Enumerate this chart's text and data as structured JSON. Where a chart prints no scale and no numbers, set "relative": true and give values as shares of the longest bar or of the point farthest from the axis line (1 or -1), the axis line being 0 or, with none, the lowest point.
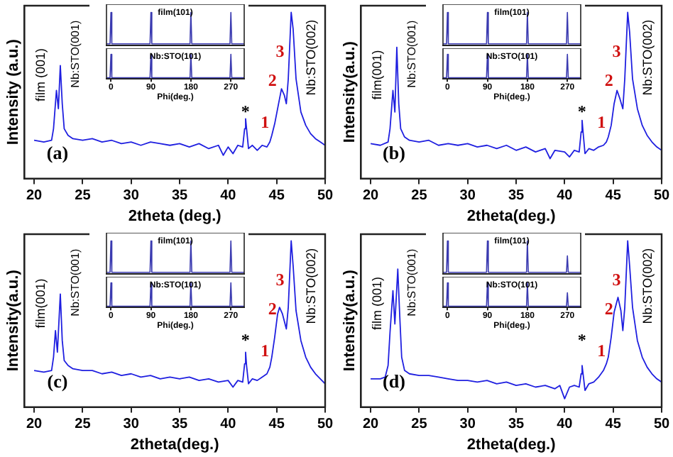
{
  "chart_data": [
    {
      "type": "line",
      "relative": true,
      "tick_labels": "x",
      "xlabel": "2theta (deg.)",
      "ylabel": "Intensity (a.u.)",
      "xlim": [
        19,
        50
      ],
      "xticks": [
        20,
        25,
        30,
        35,
        40,
        45,
        50
      ],
      "color": "#1f1fe0",
      "x": [
        20,
        21,
        21.8,
        22.0,
        22.3,
        22.5,
        22.7,
        22.9,
        23.1,
        23.5,
        24,
        25,
        26,
        27,
        28,
        29,
        30,
        31,
        32,
        33,
        34,
        35,
        36,
        37,
        38,
        39,
        39.5,
        40,
        40.5,
        41,
        41.5,
        41.7,
        41.8,
        41.9,
        42.1,
        42.5,
        43,
        43.5,
        44,
        44.3,
        44.5,
        44.8,
        45.2,
        45.5,
        45.8,
        46.0,
        46.2,
        46.5,
        46.7,
        47,
        47.5,
        48,
        48.5,
        49,
        49.5,
        50
      ],
      "values": [
        0.23,
        0.22,
        0.23,
        0.3,
        0.53,
        0.42,
        0.68,
        0.45,
        0.3,
        0.26,
        0.24,
        0.23,
        0.24,
        0.22,
        0.23,
        0.21,
        0.22,
        0.2,
        0.22,
        0.21,
        0.2,
        0.21,
        0.19,
        0.21,
        0.18,
        0.2,
        0.14,
        0.19,
        0.15,
        0.2,
        0.19,
        0.3,
        0.36,
        0.3,
        0.18,
        0.2,
        0.17,
        0.2,
        0.19,
        0.22,
        0.26,
        0.33,
        0.45,
        0.54,
        0.5,
        0.45,
        0.6,
        1,
        0.9,
        0.6,
        0.4,
        0.32,
        0.27,
        0.24,
        0.22,
        0.2
      ],
      "annotations": [
        "(a)",
        "film (001)",
        "Nb:STO(002)",
        "Nb:STO(001)",
        "*",
        "1",
        "2",
        "3"
      ]
    },
    {
      "type": "line",
      "relative": true,
      "tick_labels": false,
      "title": "film(101)",
      "xlim": [
        -10,
        300
      ],
      "xticks": [
        0,
        90,
        180,
        270
      ],
      "color": "#3a3ab0",
      "x": [
        -10,
        -2,
        0,
        2,
        88,
        90,
        92,
        178,
        180,
        182,
        268,
        270,
        272,
        300
      ],
      "values": [
        0.05,
        0.05,
        1,
        0.05,
        0.05,
        1,
        0.05,
        0.05,
        1,
        0.05,
        0.05,
        1,
        0.05,
        0.05
      ]
    },
    {
      "type": "line",
      "relative": true,
      "tick_labels": "x",
      "title": "Nb:STO(101)",
      "xlabel": "Phi(deg.)",
      "xlim": [
        -10,
        300
      ],
      "xticks": [
        0,
        90,
        180,
        270
      ],
      "color": "#3a3ab0",
      "x": [
        -10,
        -2,
        0,
        2,
        88,
        90,
        92,
        178,
        180,
        182,
        268,
        270,
        272,
        300
      ],
      "values": [
        0.05,
        0.05,
        1,
        0.05,
        0.05,
        1,
        0.05,
        0.05,
        1,
        0.05,
        0.05,
        1,
        0.05,
        0.05
      ]
    },
    {
      "type": "line",
      "relative": true,
      "tick_labels": "x",
      "xlabel": "2theta(deg.)",
      "ylabel": "Intensity(a.u.)",
      "xlim": [
        19,
        50
      ],
      "xticks": [
        20,
        25,
        30,
        35,
        40,
        45,
        50
      ],
      "color": "#1f1fe0",
      "x": [
        20,
        21,
        21.8,
        22.0,
        22.3,
        22.5,
        22.7,
        22.9,
        23.1,
        23.5,
        24,
        25,
        26,
        27,
        28,
        29,
        30,
        31,
        32,
        33,
        34,
        35,
        36,
        37,
        38,
        38.5,
        39,
        40,
        40.5,
        41,
        41.5,
        41.7,
        41.8,
        41.9,
        42.1,
        42.5,
        43,
        43.5,
        44,
        44.3,
        44.5,
        44.8,
        45.1,
        45.4,
        45.7,
        46.0,
        46.2,
        46.5,
        46.7,
        47,
        47.5,
        48,
        48.5,
        49,
        49.5,
        50
      ],
      "values": [
        0.21,
        0.2,
        0.22,
        0.3,
        0.53,
        0.4,
        0.79,
        0.45,
        0.3,
        0.25,
        0.23,
        0.22,
        0.23,
        0.2,
        0.21,
        0.2,
        0.21,
        0.19,
        0.2,
        0.18,
        0.2,
        0.17,
        0.19,
        0.16,
        0.18,
        0.12,
        0.17,
        0.16,
        0.13,
        0.17,
        0.16,
        0.28,
        0.35,
        0.28,
        0.15,
        0.18,
        0.17,
        0.19,
        0.2,
        0.22,
        0.25,
        0.32,
        0.45,
        0.53,
        0.48,
        0.42,
        0.6,
        1,
        0.88,
        0.6,
        0.42,
        0.32,
        0.26,
        0.22,
        0.19,
        0.17
      ],
      "annotations": [
        "(b)",
        "film(001)",
        "Nb:STO(002)",
        "Nb:STO(001)",
        "*",
        "1",
        "2",
        "3"
      ]
    },
    {
      "type": "line",
      "relative": true,
      "tick_labels": false,
      "title": "film(101)",
      "xlim": [
        -10,
        300
      ],
      "xticks": [
        0,
        90,
        180,
        270
      ],
      "color": "#3a3ab0",
      "x": [
        -10,
        -2,
        0,
        2,
        88,
        90,
        92,
        178,
        180,
        182,
        268,
        270,
        272,
        300
      ],
      "values": [
        0.05,
        0.05,
        1,
        0.05,
        0.05,
        1,
        0.05,
        0.05,
        1,
        0.05,
        0.05,
        1,
        0.05,
        0.05
      ]
    },
    {
      "type": "line",
      "relative": true,
      "tick_labels": "x",
      "title": "Nb:STO(101)",
      "xlabel": "Phi(deg.)",
      "xlim": [
        -10,
        300
      ],
      "xticks": [
        0,
        90,
        180,
        270
      ],
      "color": "#3a3ab0",
      "x": [
        -10,
        -2,
        0,
        2,
        88,
        90,
        92,
        178,
        180,
        182,
        268,
        270,
        272,
        300
      ],
      "values": [
        0.05,
        0.05,
        1,
        0.05,
        0.05,
        1,
        0.05,
        0.05,
        1,
        0.05,
        0.05,
        1,
        0.05,
        0.05
      ]
    },
    {
      "type": "line",
      "relative": true,
      "tick_labels": "x",
      "xlabel": "2theta(deg.)",
      "ylabel": "Intensity(a.u.)",
      "xlim": [
        19,
        50
      ],
      "xticks": [
        20,
        25,
        30,
        35,
        40,
        45,
        50
      ],
      "color": "#1f1fe0",
      "x": [
        20,
        21,
        21.8,
        22.0,
        22.2,
        22.4,
        22.7,
        22.9,
        23.1,
        23.5,
        24,
        25,
        26,
        27,
        28,
        29,
        30,
        31,
        32,
        33,
        34,
        35,
        36,
        37,
        38,
        39,
        40,
        40.5,
        41,
        41.5,
        41.7,
        41.8,
        41.9,
        42.1,
        42.5,
        43,
        43.5,
        44,
        44.3,
        44.5,
        44.8,
        45.1,
        45.3,
        45.6,
        46.0,
        46.2,
        46.5,
        46.7,
        47,
        47.5,
        48,
        48.5,
        49,
        49.5,
        50
      ],
      "values": [
        0.22,
        0.21,
        0.22,
        0.3,
        0.46,
        0.33,
        0.68,
        0.4,
        0.28,
        0.25,
        0.23,
        0.22,
        0.22,
        0.2,
        0.21,
        0.19,
        0.2,
        0.18,
        0.19,
        0.17,
        0.18,
        0.17,
        0.18,
        0.16,
        0.17,
        0.15,
        0.16,
        0.12,
        0.16,
        0.15,
        0.26,
        0.33,
        0.25,
        0.14,
        0.17,
        0.16,
        0.18,
        0.2,
        0.24,
        0.3,
        0.42,
        0.56,
        0.6,
        0.56,
        0.47,
        0.6,
        1,
        0.85,
        0.58,
        0.4,
        0.3,
        0.24,
        0.2,
        0.17,
        0.14
      ],
      "annotations": [
        "(c)",
        "film(001)",
        "Nb:STO(002)",
        "Nb:STO(001)",
        "*",
        "1",
        "2",
        "3"
      ]
    },
    {
      "type": "line",
      "relative": true,
      "tick_labels": false,
      "title": "film(101)",
      "xlim": [
        -10,
        300
      ],
      "xticks": [
        0,
        90,
        180,
        270
      ],
      "color": "#3a3ab0",
      "x": [
        -10,
        -2,
        0,
        2,
        88,
        90,
        92,
        178,
        180,
        182,
        268,
        270,
        272,
        300
      ],
      "values": [
        0.05,
        0.05,
        1,
        0.05,
        0.05,
        1,
        0.05,
        0.05,
        1,
        0.05,
        0.05,
        1,
        0.05,
        0.05
      ]
    },
    {
      "type": "line",
      "relative": true,
      "tick_labels": "x",
      "title": "Nb:STO(101)",
      "xlabel": "Phi(deg.)",
      "xlim": [
        -10,
        300
      ],
      "xticks": [
        0,
        90,
        180,
        270
      ],
      "color": "#3a3ab0",
      "x": [
        -10,
        -2,
        0,
        2,
        88,
        90,
        92,
        178,
        180,
        182,
        268,
        270,
        272,
        300
      ],
      "values": [
        0.05,
        0.05,
        1,
        0.05,
        0.05,
        1,
        0.05,
        0.05,
        1,
        0.05,
        0.05,
        1,
        0.05,
        0.05
      ]
    },
    {
      "type": "line",
      "relative": true,
      "tick_labels": "x",
      "xlabel": "2theta(deg.)",
      "ylabel": "Intensity(a.u.)",
      "xlim": [
        19,
        50
      ],
      "xticks": [
        20,
        25,
        30,
        35,
        40,
        45,
        50
      ],
      "color": "#1f1fe0",
      "x": [
        20,
        21,
        21.5,
        21.8,
        22.0,
        22.3,
        22.5,
        22.8,
        23.0,
        23.2,
        23.5,
        24,
        25,
        26,
        27,
        28,
        29,
        30,
        31,
        32,
        33,
        34,
        35,
        36,
        37,
        38,
        39,
        39.5,
        40,
        40.5,
        41,
        41.5,
        41.7,
        41.8,
        41.9,
        42.1,
        42.5,
        43,
        43.5,
        44,
        44.3,
        44.5,
        44.8,
        45.1,
        45.5,
        45.8,
        46.0,
        46.2,
        46.5,
        46.7,
        47,
        47.5,
        48,
        48.5,
        49,
        49.5,
        50
      ],
      "values": [
        0.17,
        0.17,
        0.18,
        0.25,
        0.45,
        0.7,
        0.5,
        0.83,
        0.55,
        0.3,
        0.22,
        0.2,
        0.19,
        0.19,
        0.18,
        0.17,
        0.16,
        0.16,
        0.15,
        0.16,
        0.14,
        0.15,
        0.13,
        0.14,
        0.12,
        0.13,
        0.11,
        0.13,
        0.05,
        0.12,
        0.13,
        0.12,
        0.2,
        0.25,
        0.2,
        0.1,
        0.14,
        0.15,
        0.18,
        0.22,
        0.26,
        0.3,
        0.42,
        0.57,
        0.66,
        0.58,
        0.46,
        0.6,
        1,
        0.85,
        0.6,
        0.4,
        0.3,
        0.24,
        0.2,
        0.17,
        0.15
      ],
      "annotations": [
        "(d)",
        "film (001)",
        "Nb:STO(002)",
        "Nb:STO(001)",
        "*",
        "1",
        "2",
        "3"
      ]
    },
    {
      "type": "line",
      "relative": true,
      "tick_labels": false,
      "title": "film(101)",
      "xlim": [
        -10,
        300
      ],
      "xticks": [
        0,
        90,
        180,
        270
      ],
      "color": "#3a3ab0",
      "x": [
        -10,
        -2,
        0,
        2,
        88,
        90,
        92,
        178,
        180,
        182,
        268,
        270,
        272,
        300
      ],
      "values": [
        0.05,
        0.05,
        1,
        0.05,
        0.05,
        1,
        0.05,
        0.05,
        1,
        0.05,
        0.05,
        0.55,
        0.05,
        0.05
      ]
    },
    {
      "type": "line",
      "relative": true,
      "tick_labels": "x",
      "title": "Nb:STO(101)",
      "xlabel": "Phi(deg.)",
      "xlim": [
        -10,
        300
      ],
      "xticks": [
        0,
        90,
        180,
        270
      ],
      "color": "#3a3ab0",
      "x": [
        -10,
        -2,
        0,
        2,
        88,
        90,
        92,
        178,
        180,
        182,
        268,
        270,
        272,
        300
      ],
      "values": [
        0.05,
        0.05,
        1,
        0.05,
        0.05,
        1,
        0.05,
        0.05,
        1,
        0.05,
        0.05,
        0.6,
        0.05,
        0.05
      ]
    }
  ]
}
